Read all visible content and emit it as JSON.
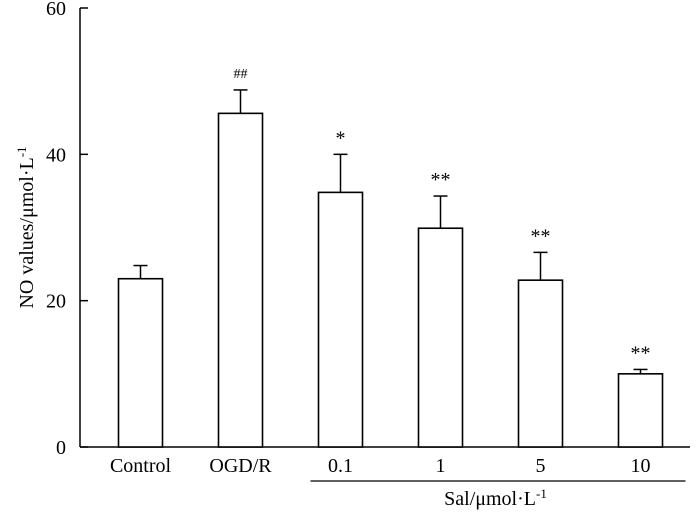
{
  "chart_data": {
    "type": "bar",
    "title": "",
    "ylabel": "NO values/μmol·L",
    "ylabel_superscript": "-1",
    "xlabel": "",
    "group_label": "Sal/μmol·L",
    "group_label_superscript": "-1",
    "categories": [
      "Control",
      "OGD/R",
      "0.1",
      "1",
      "5",
      "10"
    ],
    "values": [
      23,
      45.6,
      34.8,
      29.9,
      22.8,
      10
    ],
    "errors": [
      1.8,
      3.2,
      5.2,
      4.4,
      3.8,
      0.6
    ],
    "significance": [
      "",
      "##",
      "*",
      "**",
      "**",
      "**"
    ],
    "ylim": [
      0,
      60
    ],
    "yticks": [
      0,
      20,
      40,
      60
    ],
    "grouped_categories": [
      "0.1",
      "1",
      "5",
      "10"
    ],
    "colors": {
      "bar_fill": "#ffffff",
      "bar_stroke": "#000000",
      "axis": "#000000"
    }
  }
}
